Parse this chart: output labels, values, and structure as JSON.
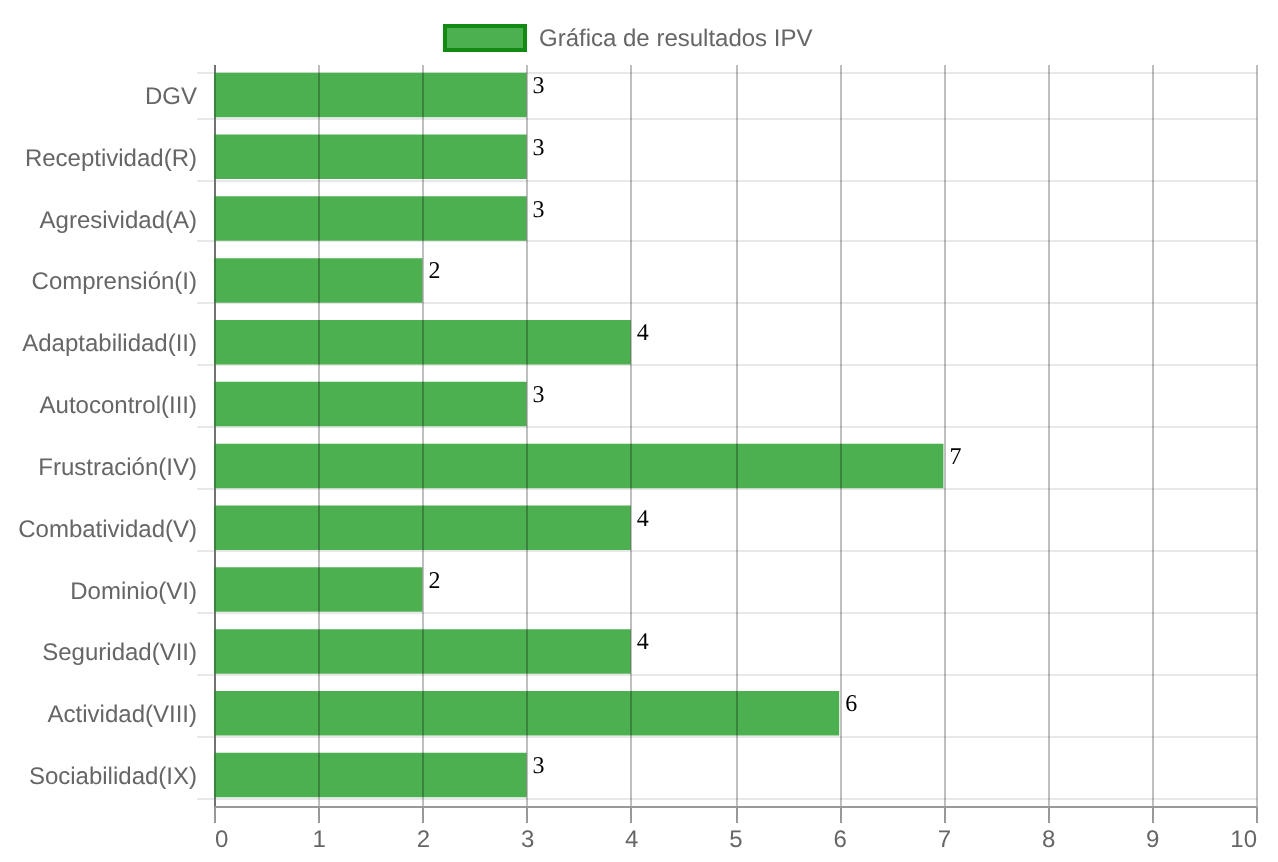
{
  "chart_data": {
    "type": "bar",
    "orientation": "horizontal",
    "categories": [
      "DGV",
      "Receptividad(R)",
      "Agresividad(A)",
      "Comprensión(I)",
      "Adaptabilidad(II)",
      "Autocontrol(III)",
      "Frustración(IV)",
      "Combatividad(V)",
      "Dominio(VI)",
      "Seguridad(VII)",
      "Actividad(VIII)",
      "Sociabilidad(IX)"
    ],
    "series": [
      {
        "name": "Gráfica de resultados IPV",
        "color": "#4caf50",
        "values": [
          3,
          3,
          3,
          2,
          4,
          3,
          7,
          4,
          2,
          4,
          6,
          3
        ]
      }
    ],
    "xlim": [
      0,
      10
    ],
    "xticks": [
      0,
      1,
      2,
      3,
      4,
      5,
      6,
      7,
      8,
      9,
      10
    ],
    "grid": true,
    "legend": "top",
    "data_labels": true
  }
}
